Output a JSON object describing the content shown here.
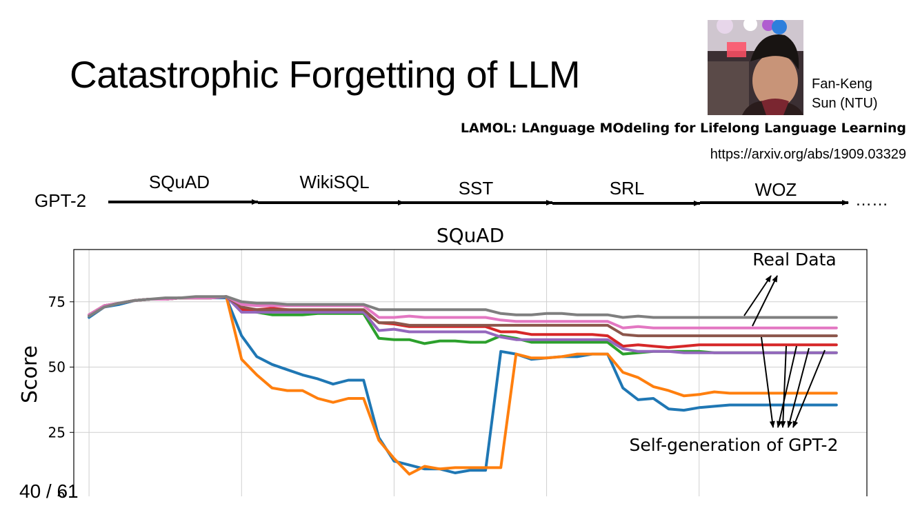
{
  "slide": {
    "title": "Catastrophic Forgetting of LLM",
    "author": [
      "Fan-Keng",
      "Sun (NTU)"
    ],
    "paper_title": "LAMOL: LAnguage MOdeling for Lifelong Language Learning",
    "paper_url": "https://arxiv.org/abs/1909.03329",
    "page_number": "40 / 61"
  },
  "pipeline": {
    "start": "GPT-2",
    "stages": [
      "SQuAD",
      "WikiSQL",
      "SST",
      "SRL",
      "WOZ"
    ],
    "ellipsis": "……"
  },
  "annotations": {
    "real_data": "Real Data",
    "self_generation": "Self-generation of GPT-2"
  },
  "chart_data": {
    "type": "line",
    "title": "SQuAD",
    "xlabel": "",
    "ylabel": "Score",
    "ylim": [
      0,
      95
    ],
    "yticks": [
      0,
      25,
      50,
      75
    ],
    "xlim": [
      -1,
      51
    ],
    "x_gridlines": [
      0,
      10,
      20,
      30,
      40
    ],
    "grid": true,
    "x": [
      0,
      1,
      2,
      3,
      4,
      5,
      6,
      7,
      8,
      9,
      10,
      11,
      12,
      13,
      14,
      15,
      16,
      17,
      18,
      19,
      20,
      21,
      22,
      23,
      24,
      25,
      26,
      27,
      28,
      29,
      30,
      31,
      32,
      33,
      34,
      35,
      36,
      37,
      38,
      39,
      40,
      41,
      42,
      43,
      44,
      45,
      46,
      47,
      48,
      49
    ],
    "series": [
      {
        "color": "#1f77b4",
        "values": [
          69,
          73,
          74,
          75.5,
          76,
          76,
          76.5,
          76.5,
          76.5,
          76.5,
          62,
          54,
          51,
          49,
          47,
          45.5,
          43.5,
          45,
          45,
          23,
          14,
          12.5,
          11,
          11,
          9.5,
          10.5,
          10.5,
          56,
          55,
          53,
          53.5,
          54,
          54,
          55,
          55,
          42,
          37.5,
          38,
          34,
          33.5,
          34.5,
          35,
          35.5,
          35.5,
          35.5,
          35.5,
          35.5,
          35.5,
          35.5,
          35.5
        ]
      },
      {
        "color": "#ff7f0e",
        "values": [
          70,
          73.5,
          74.5,
          75.5,
          76,
          76,
          76.5,
          76.5,
          76.5,
          77,
          53,
          47,
          42,
          41,
          41,
          38,
          36.5,
          38,
          38,
          22,
          15,
          9,
          12,
          11,
          11.5,
          11.5,
          11.5,
          11.5,
          55,
          53.5,
          53.5,
          54,
          55,
          55,
          55,
          48,
          46,
          42.5,
          41,
          39,
          39.5,
          40.5,
          40,
          40,
          40,
          40,
          40,
          40,
          40,
          40
        ]
      },
      {
        "color": "#2ca02c",
        "values": [
          70,
          73.5,
          74.5,
          75.5,
          76,
          76,
          76.5,
          76.5,
          76.5,
          77,
          72,
          71,
          70,
          70,
          70,
          70.5,
          70.5,
          70.5,
          70.5,
          61,
          60.5,
          60.5,
          59,
          60,
          60,
          59.5,
          59.5,
          62,
          61,
          59.5,
          59.5,
          59.5,
          59.5,
          59.5,
          59.5,
          55,
          55.5,
          56,
          56,
          56,
          56,
          55.5,
          55.5,
          55.5,
          55.5,
          55.5,
          55.5,
          55.5,
          55.5,
          55.5
        ]
      },
      {
        "color": "#d62728",
        "values": [
          70,
          73.5,
          74.5,
          75.5,
          76,
          76,
          76.5,
          76.5,
          76.5,
          77,
          72,
          72,
          72.5,
          72,
          71.5,
          71.5,
          71.5,
          71.5,
          71.5,
          67,
          66.5,
          65.5,
          65.5,
          65.5,
          65.5,
          65.5,
          65.5,
          63.5,
          63.5,
          62.5,
          62.5,
          62.5,
          62.5,
          62.5,
          62,
          58,
          58.5,
          58,
          57.5,
          58,
          58.5,
          58.5,
          58.5,
          58.5,
          58.5,
          58.5,
          58.5,
          58.5,
          58.5,
          58.5
        ]
      },
      {
        "color": "#9467bd",
        "values": [
          70,
          73.5,
          74.5,
          75.5,
          76,
          76,
          76.5,
          76.5,
          76.5,
          77,
          71,
          71,
          71,
          71,
          71,
          71,
          71,
          71,
          71,
          64,
          64.5,
          63.5,
          63.5,
          63.5,
          63.5,
          63.5,
          63.5,
          61.5,
          60.5,
          60.5,
          60.5,
          60.5,
          60.5,
          60.5,
          60.5,
          57,
          56,
          56,
          56,
          55.5,
          55.5,
          55.5,
          55.5,
          55.5,
          55.5,
          55.5,
          55.5,
          55.5,
          55.5,
          55.5
        ]
      },
      {
        "color": "#8c564b",
        "values": [
          70,
          73.5,
          74.5,
          75.5,
          76,
          76,
          76.5,
          76.5,
          76.5,
          77,
          73,
          72,
          72,
          72,
          72,
          72,
          72,
          72,
          72,
          67,
          67,
          66,
          66,
          66,
          66,
          66,
          66,
          66,
          66,
          66,
          66,
          66,
          66,
          66,
          66,
          62.5,
          62,
          62,
          62,
          62,
          62,
          62,
          62,
          62,
          62,
          62,
          62,
          62,
          62,
          62
        ]
      },
      {
        "color": "#e377c2",
        "values": [
          70,
          73.5,
          74.5,
          75.5,
          76,
          76,
          76.5,
          76.5,
          76.5,
          77,
          74,
          73.5,
          73.5,
          73.5,
          73.5,
          73.5,
          73.5,
          73.5,
          73.5,
          69,
          69,
          69.5,
          69,
          69,
          69,
          69,
          69,
          68,
          67.5,
          67.5,
          67.5,
          67.5,
          67.5,
          67.5,
          67.5,
          65,
          65.5,
          65,
          65,
          65,
          65,
          65,
          65,
          65,
          65,
          65,
          65,
          65,
          65,
          65
        ]
      },
      {
        "color": "#7f7f7f",
        "values": [
          69.5,
          73,
          74.5,
          75.5,
          76,
          76.5,
          76.5,
          77,
          77,
          77,
          75,
          74.5,
          74.5,
          74,
          74,
          74,
          74,
          74,
          74,
          72,
          72,
          72,
          72,
          72,
          72,
          72,
          72,
          70.5,
          70,
          70,
          70.5,
          70.5,
          70,
          70,
          70,
          69,
          69.5,
          69,
          69,
          69,
          69,
          69,
          69,
          69,
          69,
          69,
          69,
          69,
          69,
          69
        ]
      }
    ]
  }
}
